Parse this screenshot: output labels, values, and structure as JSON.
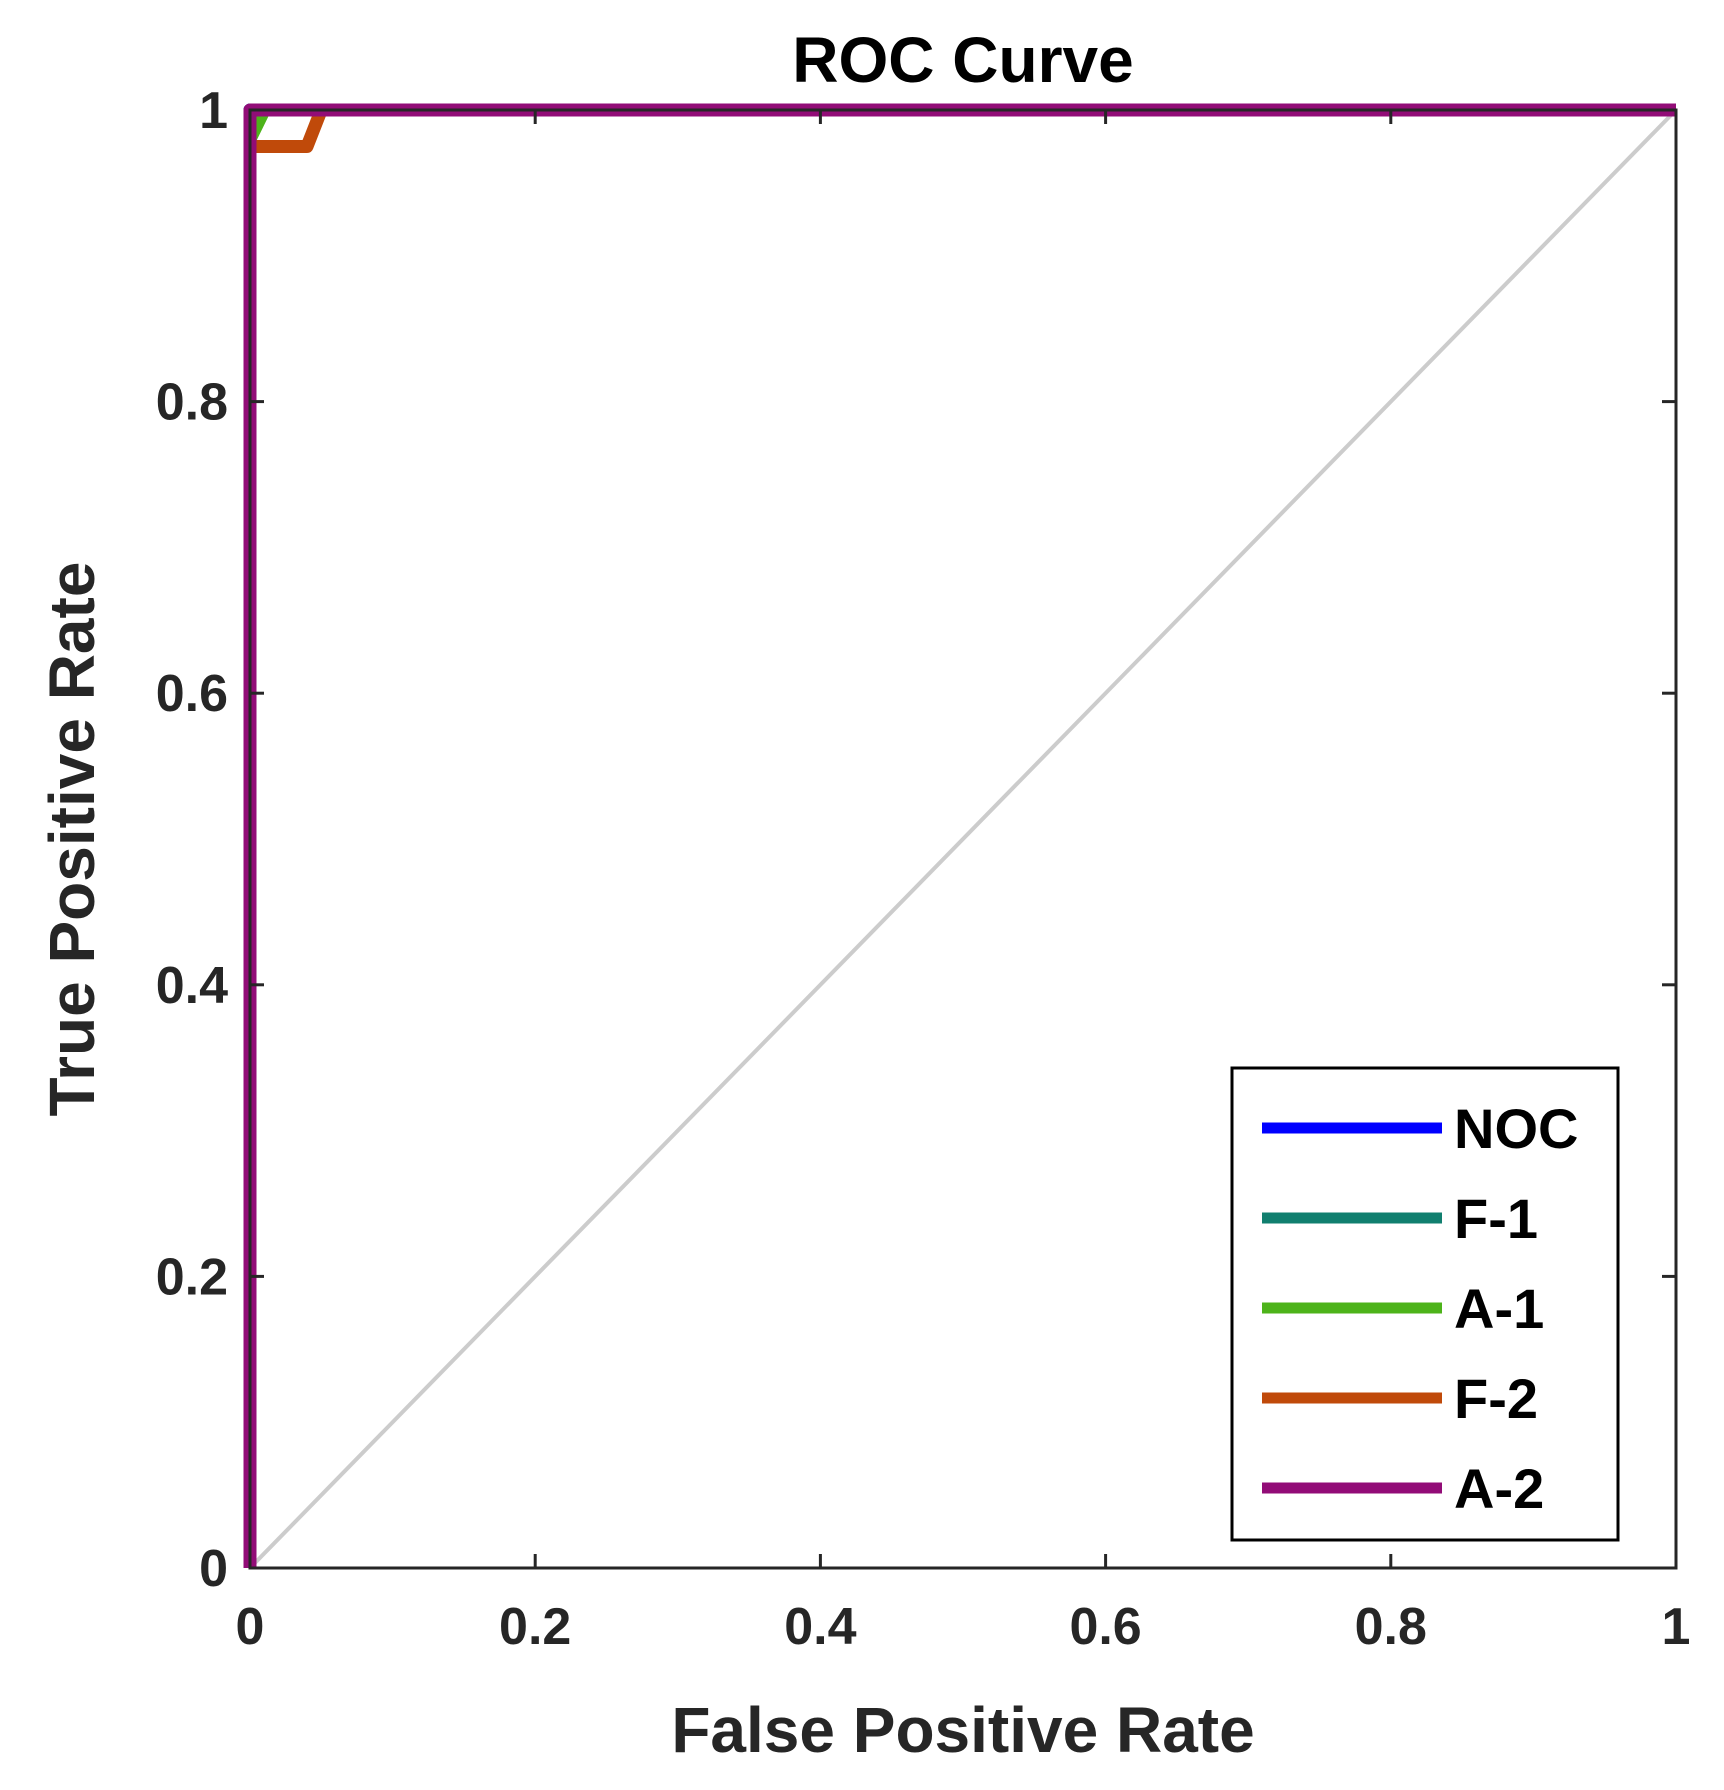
{
  "chart_data": {
    "type": "line",
    "title": "ROC Curve",
    "xlabel": "False Positive Rate",
    "ylabel": "True Positive Rate",
    "xlim": [
      0,
      1
    ],
    "ylim": [
      0,
      1
    ],
    "x_ticks": [
      0,
      0.2,
      0.4,
      0.6,
      0.8,
      1
    ],
    "y_ticks": [
      0,
      0.2,
      0.4,
      0.6,
      0.8,
      1
    ],
    "x_tick_labels": [
      "0",
      "0.2",
      "0.4",
      "0.6",
      "0.8",
      "1"
    ],
    "y_tick_labels": [
      "0",
      "0.2",
      "0.4",
      "0.6",
      "0.8",
      "1"
    ],
    "grid": false,
    "legend_position": "bottom-right",
    "reference_line": {
      "name": "chance",
      "color": "#cccccc",
      "points": [
        [
          0,
          0
        ],
        [
          1,
          1
        ]
      ]
    },
    "series": [
      {
        "name": "NOC",
        "color": "#0000ff",
        "points": [
          [
            0,
            0
          ],
          [
            0,
            1
          ],
          [
            1,
            1
          ]
        ]
      },
      {
        "name": "F-1",
        "color": "#117f6f",
        "points": [
          [
            0,
            0
          ],
          [
            0,
            1
          ],
          [
            1,
            1
          ]
        ]
      },
      {
        "name": "A-1",
        "color": "#4db31a",
        "points": [
          [
            0,
            0
          ],
          [
            0,
            0.98
          ],
          [
            0.01,
            1
          ],
          [
            1,
            1
          ]
        ]
      },
      {
        "name": "F-2",
        "color": "#c04a0a",
        "points": [
          [
            0,
            0
          ],
          [
            0,
            0.975
          ],
          [
            0.04,
            0.975
          ],
          [
            0.05,
            1
          ],
          [
            1,
            1
          ]
        ]
      },
      {
        "name": "A-2",
        "color": "#920c77",
        "points": [
          [
            0,
            0
          ],
          [
            0,
            1
          ],
          [
            1,
            1
          ]
        ]
      }
    ]
  }
}
